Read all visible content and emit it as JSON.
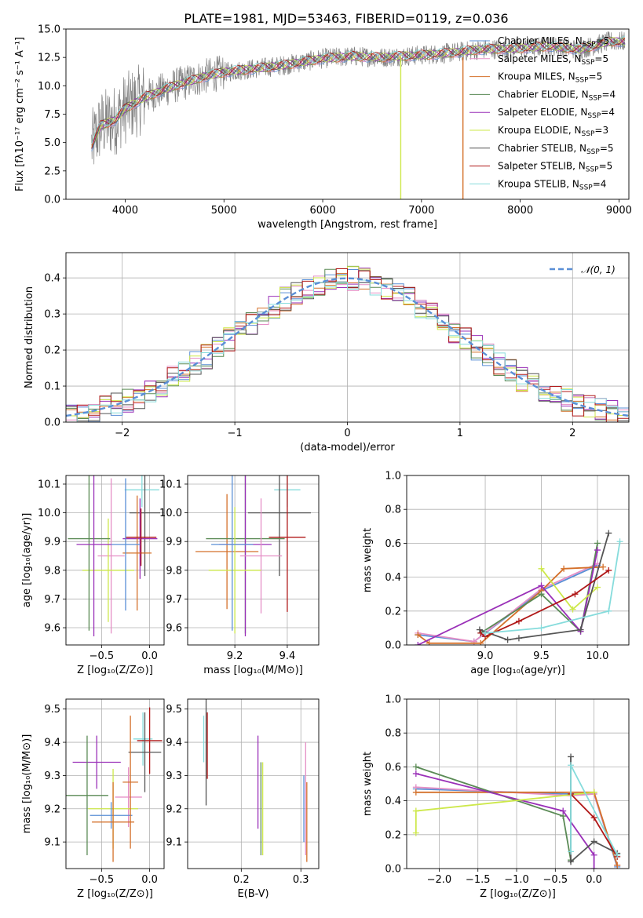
{
  "title": "PLATE=1981, MJD=53463, FIBERID=0119, z=0.036",
  "chart_data": [
    {
      "type": "line",
      "id": "spectrum",
      "xlabel": "wavelength [Angstrom, rest frame]",
      "ylabel": "Flux [fλ10⁻¹⁷ erg cm⁻² s⁻¹ A⁻¹]",
      "xlim": [
        3400,
        9100
      ],
      "ylim": [
        0,
        15
      ],
      "xticks": [
        4000,
        5000,
        6000,
        7000,
        8000,
        9000
      ],
      "yticks": [
        0.0,
        2.5,
        5.0,
        7.5,
        10.0,
        12.5,
        15.0
      ],
      "grid": false,
      "legend_position": "top-right",
      "data_color": "#808080",
      "model_points": {
        "x": [
          3650,
          3750,
          3900,
          4000,
          4200,
          4500,
          4800,
          5000,
          5300,
          5600,
          6000,
          6300,
          6600,
          7000,
          7300,
          7600,
          8000,
          8300,
          8600,
          8900
        ],
        "y": [
          4.5,
          6.5,
          7.0,
          8.0,
          9.0,
          10.0,
          10.8,
          11.2,
          11.5,
          11.8,
          12.4,
          12.6,
          12.5,
          12.7,
          12.9,
          13.2,
          13.3,
          13.5,
          13.2,
          13.9
        ]
      },
      "dips": [
        {
          "x": 6790,
          "series": "Kroupa ELODIE"
        },
        {
          "x": 7420,
          "series": "Kroupa MILES"
        }
      ],
      "series": [
        {
          "name": "Chabrier MILES, N",
          "sub": "SSP",
          "suffix": "=5",
          "color": "#5a8fd6"
        },
        {
          "name": "Salpeter MILES, N",
          "sub": "SSP",
          "suffix": "=5",
          "color": "#e58fc6"
        },
        {
          "name": "Kroupa MILES, N",
          "sub": "SSP",
          "suffix": "=5",
          "color": "#d4702a"
        },
        {
          "name": "Chabrier ELODIE, N",
          "sub": "SSP",
          "suffix": "=4",
          "color": "#5a8a55"
        },
        {
          "name": "Salpeter ELODIE, N",
          "sub": "SSP",
          "suffix": "=4",
          "color": "#9a30b8"
        },
        {
          "name": "Kroupa ELODIE, N",
          "sub": "SSP",
          "suffix": "=3",
          "color": "#cde84a"
        },
        {
          "name": "Chabrier STELIB, N",
          "sub": "SSP",
          "suffix": "=5",
          "color": "#555555"
        },
        {
          "name": "Salpeter STELIB, N",
          "sub": "SSP",
          "suffix": "=5",
          "color": "#b01818"
        },
        {
          "name": "Kroupa STELIB, N",
          "sub": "SSP",
          "suffix": "=4",
          "color": "#86dcdc"
        }
      ]
    },
    {
      "type": "step",
      "id": "residuals",
      "xlabel": "(data-model)/error",
      "ylabel": "Normed distribution",
      "xlim": [
        -2.5,
        2.5
      ],
      "ylim": [
        0,
        0.47
      ],
      "xticks": [
        -2,
        -1,
        0,
        1,
        2
      ],
      "yticks": [
        0.0,
        0.1,
        0.2,
        0.3,
        0.4
      ],
      "grid": true,
      "legend_position": "top-right",
      "reference": {
        "name": "𝒩(0, 1)",
        "color": "#5a8fd6",
        "style": "dashed"
      },
      "bin_width": 0.1
    },
    {
      "type": "errorbar",
      "id": "age-vs-Z",
      "xlabel": "Z [log₁₀(Z/Z⊙)]",
      "ylabel": "age  [log₁₀(age/yr)]",
      "xlim": [
        -0.87,
        0.15
      ],
      "ylim": [
        9.54,
        10.13
      ],
      "xticks": [
        -0.5,
        0.0
      ],
      "yticks": [
        9.6,
        9.7,
        9.8,
        9.9,
        10.0,
        10.1
      ],
      "grid": true,
      "points": [
        {
          "x": -0.08,
          "y": 10.08,
          "xerr": 0.18,
          "yerr": 0.06,
          "color": "#86dcdc"
        },
        {
          "x": -0.05,
          "y": 10.0,
          "xerr": 0.16,
          "yerr": 0.22,
          "color": "#555555"
        },
        {
          "x": -0.1,
          "y": 9.91,
          "xerr": 0.18,
          "yerr": 0.14,
          "color": "#9a30b8"
        },
        {
          "x": -0.13,
          "y": 9.86,
          "xerr": 0.15,
          "yerr": 0.2,
          "color": "#d4702a"
        },
        {
          "x": -0.09,
          "y": 9.915,
          "xerr": 0.16,
          "yerr": 0.1,
          "color": "#b01818"
        },
        {
          "x": -0.4,
          "y": 9.85,
          "xerr": 0.14,
          "yerr": 0.27,
          "color": "#e58fc6"
        },
        {
          "x": -0.43,
          "y": 9.8,
          "xerr": 0.27,
          "yerr": 0.18,
          "color": "#cde84a"
        },
        {
          "x": -0.63,
          "y": 9.91,
          "xerr": 0.22,
          "yerr": 0.32,
          "color": "#5a8a55"
        },
        {
          "x": -0.58,
          "y": 9.89,
          "xerr": 0.18,
          "yerr": 0.32,
          "color": "#9a30b8"
        },
        {
          "x": -0.25,
          "y": 9.89,
          "xerr": 0.15,
          "yerr": 0.23,
          "color": "#5a8fd6"
        }
      ]
    },
    {
      "type": "errorbar",
      "id": "age-vs-mass",
      "xlabel": "mass [log₁₀(M/M⊙)]",
      "ylabel": "",
      "xlim": [
        9.02,
        9.52
      ],
      "ylim": [
        9.54,
        10.13
      ],
      "xticks": [
        9.2,
        9.4
      ],
      "yticks": [
        9.6,
        9.7,
        9.8,
        9.9,
        10.0,
        10.1
      ],
      "grid": true,
      "points": [
        {
          "x": 9.4,
          "y": 10.08,
          "xerr": 0.05,
          "yerr": 0.06,
          "color": "#86dcdc"
        },
        {
          "x": 9.37,
          "y": 10.0,
          "xerr": 0.12,
          "yerr": 0.22,
          "color": "#555555"
        },
        {
          "x": 9.4,
          "y": 9.915,
          "xerr": 0.07,
          "yerr": 0.26,
          "color": "#b01818"
        },
        {
          "x": 9.17,
          "y": 9.865,
          "xerr": 0.12,
          "yerr": 0.2,
          "color": "#d4702a"
        },
        {
          "x": 9.24,
          "y": 9.91,
          "xerr": 0.15,
          "yerr": 0.33,
          "color": "#5a8a55"
        },
        {
          "x": 9.24,
          "y": 9.89,
          "xerr": 0.1,
          "yerr": 0.32,
          "color": "#9a30b8"
        },
        {
          "x": 9.3,
          "y": 9.85,
          "xerr": 0.08,
          "yerr": 0.2,
          "color": "#e58fc6"
        },
        {
          "x": 9.2,
          "y": 9.8,
          "xerr": 0.1,
          "yerr": 0.22,
          "color": "#cde84a"
        },
        {
          "x": 9.19,
          "y": 9.89,
          "xerr": 0.08,
          "yerr": 0.3,
          "color": "#5a8fd6"
        }
      ]
    },
    {
      "type": "line",
      "id": "weight-vs-age",
      "xlabel": "age  [log₁₀(age/yr)]",
      "ylabel": "mass weight",
      "xlim": [
        8.3,
        10.28
      ],
      "ylim": [
        0,
        1.0
      ],
      "xticks": [
        9.0,
        9.5,
        10.0
      ],
      "yticks": [
        0.0,
        0.2,
        0.4,
        0.6,
        0.8,
        1.0
      ],
      "grid": true,
      "series": [
        {
          "name": "Chabrier MILES",
          "color": "#5a8fd6",
          "x": [
            8.4,
            8.9,
            9.5,
            10.0
          ],
          "y": [
            0.06,
            0.02,
            0.32,
            0.47
          ]
        },
        {
          "name": "Salpeter MILES",
          "color": "#e58fc6",
          "x": [
            8.4,
            8.9,
            9.5,
            10.0
          ],
          "y": [
            0.07,
            0.02,
            0.33,
            0.48
          ]
        },
        {
          "name": "Kroupa MILES",
          "color": "#d4702a",
          "x": [
            8.4,
            8.5,
            8.96,
            9.5,
            9.7,
            10.05
          ],
          "y": [
            0.06,
            0.01,
            0.01,
            0.32,
            0.45,
            0.46
          ]
        },
        {
          "name": "Chabrier ELODIE",
          "color": "#5a8a55",
          "x": [
            8.96,
            9.5,
            9.85,
            10.0
          ],
          "y": [
            0.07,
            0.3,
            0.08,
            0.6
          ]
        },
        {
          "name": "Salpeter ELODIE",
          "color": "#9a30b8",
          "x": [
            8.4,
            9.5,
            9.85,
            10.0
          ],
          "y": [
            0.0,
            0.35,
            0.08,
            0.56
          ]
        },
        {
          "name": "Kroupa ELODIE",
          "color": "#cde84a",
          "x": [
            9.5,
            9.78,
            10.0
          ],
          "y": [
            0.45,
            0.21,
            0.34
          ]
        },
        {
          "name": "Chabrier STELIB",
          "color": "#555555",
          "x": [
            8.95,
            9.2,
            9.3,
            9.85,
            10.1
          ],
          "y": [
            0.09,
            0.03,
            0.04,
            0.09,
            0.66
          ]
        },
        {
          "name": "Salpeter STELIB",
          "color": "#b01818",
          "x": [
            8.96,
            9.0,
            9.3,
            9.8,
            10.1
          ],
          "y": [
            0.07,
            0.05,
            0.14,
            0.3,
            0.44
          ]
        },
        {
          "name": "Kroupa STELIB",
          "color": "#86dcdc",
          "x": [
            9.0,
            9.5,
            10.1,
            10.2
          ],
          "y": [
            0.07,
            0.1,
            0.2,
            0.61
          ]
        }
      ]
    },
    {
      "type": "errorbar",
      "id": "mass-vs-Z",
      "xlabel": "Z [log₁₀(Z/Z⊙)]",
      "ylabel": "mass [log₁₀(M/M⊙)]",
      "xlim": [
        -0.87,
        0.15
      ],
      "ylim": [
        9.02,
        9.53
      ],
      "xticks": [
        -0.5,
        0.0
      ],
      "yticks": [
        9.1,
        9.2,
        9.3,
        9.4,
        9.5
      ],
      "grid": true,
      "points": [
        {
          "x": -0.07,
          "y": 9.41,
          "xerr": 0.1,
          "yerr": 0.08,
          "color": "#86dcdc"
        },
        {
          "x": 0.0,
          "y": 9.405,
          "xerr": 0.13,
          "yerr": 0.1,
          "color": "#b01818"
        },
        {
          "x": -0.05,
          "y": 9.37,
          "xerr": 0.17,
          "yerr": 0.12,
          "color": "#555555"
        },
        {
          "x": -0.55,
          "y": 9.34,
          "xerr": 0.25,
          "yerr": 0.08,
          "color": "#9a30b8"
        },
        {
          "x": -0.22,
          "y": 9.235,
          "xerr": 0.14,
          "yerr": 0.09,
          "color": "#e58fc6"
        },
        {
          "x": -0.65,
          "y": 9.24,
          "xerr": 0.22,
          "yerr": 0.18,
          "color": "#5a8a55"
        },
        {
          "x": -0.38,
          "y": 9.2,
          "xerr": 0.26,
          "yerr": 0.12,
          "color": "#cde84a"
        },
        {
          "x": -0.4,
          "y": 9.18,
          "xerr": 0.22,
          "yerr": 0.04,
          "color": "#5a8fd6"
        },
        {
          "x": -0.38,
          "y": 9.16,
          "xerr": 0.22,
          "yerr": 0.12,
          "color": "#d4702a"
        },
        {
          "x": -0.2,
          "y": 9.28,
          "xerr": 0.08,
          "yerr": 0.2,
          "color": "#d4702a"
        }
      ]
    },
    {
      "type": "errorbar",
      "id": "mass-vs-EBV",
      "xlabel": "E(B-V)",
      "ylabel": "",
      "xlim": [
        0.11,
        0.33
      ],
      "ylim": [
        9.02,
        9.53
      ],
      "xticks": [
        0.2,
        0.3
      ],
      "yticks": [
        9.1,
        9.2,
        9.3,
        9.4,
        9.5
      ],
      "grid": true,
      "points": [
        {
          "x": 0.137,
          "y": 9.41,
          "xerr": 0.0,
          "yerr": 0.07,
          "color": "#86dcdc"
        },
        {
          "x": 0.141,
          "y": 9.37,
          "xerr": 0.0,
          "yerr": 0.16,
          "color": "#555555"
        },
        {
          "x": 0.143,
          "y": 9.39,
          "xerr": 0.0,
          "yerr": 0.1,
          "color": "#b01818"
        },
        {
          "x": 0.228,
          "y": 9.28,
          "xerr": 0.0,
          "yerr": 0.14,
          "color": "#9a30b8"
        },
        {
          "x": 0.233,
          "y": 9.2,
          "xerr": 0.0,
          "yerr": 0.14,
          "color": "#5a8a55"
        },
        {
          "x": 0.236,
          "y": 9.2,
          "xerr": 0.0,
          "yerr": 0.14,
          "color": "#cde84a"
        },
        {
          "x": 0.305,
          "y": 9.2,
          "xerr": 0.0,
          "yerr": 0.1,
          "color": "#5a8fd6"
        },
        {
          "x": 0.308,
          "y": 9.23,
          "xerr": 0.0,
          "yerr": 0.17,
          "color": "#e58fc6"
        },
        {
          "x": 0.31,
          "y": 9.16,
          "xerr": 0.0,
          "yerr": 0.12,
          "color": "#d4702a"
        }
      ]
    },
    {
      "type": "line",
      "id": "weight-vs-Z",
      "xlabel": "Z [log₁₀(Z/Z⊙)]",
      "ylabel": "mass weight",
      "xlim": [
        -2.42,
        0.45
      ],
      "ylim": [
        0,
        1.0
      ],
      "xticks": [
        -2.0,
        -1.5,
        -1.0,
        -0.5,
        0.0
      ],
      "yticks": [
        0.0,
        0.2,
        0.4,
        0.6,
        0.8,
        1.0
      ],
      "grid": true,
      "series": [
        {
          "name": "Chabrier MILES",
          "color": "#5a8fd6",
          "x": [
            -2.3,
            -0.3,
            0.0,
            0.3
          ],
          "y": [
            0.47,
            0.44,
            0.44,
            0.01
          ]
        },
        {
          "name": "Salpeter MILES",
          "color": "#e58fc6",
          "x": [
            -2.3,
            -0.3,
            0.0,
            0.3
          ],
          "y": [
            0.48,
            0.43,
            0.44,
            0.02
          ]
        },
        {
          "name": "Kroupa MILES",
          "color": "#d4702a",
          "x": [
            -2.3,
            -0.3,
            0.0,
            0.3
          ],
          "y": [
            0.45,
            0.45,
            0.45,
            0.02
          ]
        },
        {
          "name": "Chabrier ELODIE",
          "color": "#5a8a55",
          "x": [
            -2.3,
            -0.4,
            -0.3
          ],
          "y": [
            0.6,
            0.31,
            0.05
          ]
        },
        {
          "name": "Salpeter ELODIE",
          "color": "#9a30b8",
          "x": [
            -2.3,
            -0.4,
            0.0,
            0.0
          ],
          "y": [
            0.56,
            0.34,
            0.08,
            0.0
          ]
        },
        {
          "name": "Kroupa ELODIE",
          "color": "#cde84a",
          "x": [
            -2.3,
            -2.3,
            0.0
          ],
          "y": [
            0.21,
            0.34,
            0.45
          ]
        },
        {
          "name": "Chabrier STELIB",
          "color": "#555555",
          "x": [
            -0.3,
            -0.3,
            0.0,
            0.3
          ],
          "y": [
            0.66,
            0.04,
            0.16,
            0.09
          ]
        },
        {
          "name": "Salpeter STELIB",
          "color": "#b01818",
          "x": [
            -0.3,
            0.0,
            0.3
          ],
          "y": [
            0.44,
            0.3,
            0.07
          ]
        },
        {
          "name": "Kroupa STELIB",
          "color": "#86dcdc",
          "x": [
            -0.3,
            -0.3,
            0.3
          ],
          "y": [
            0.1,
            0.61,
            0.08
          ]
        }
      ]
    }
  ]
}
